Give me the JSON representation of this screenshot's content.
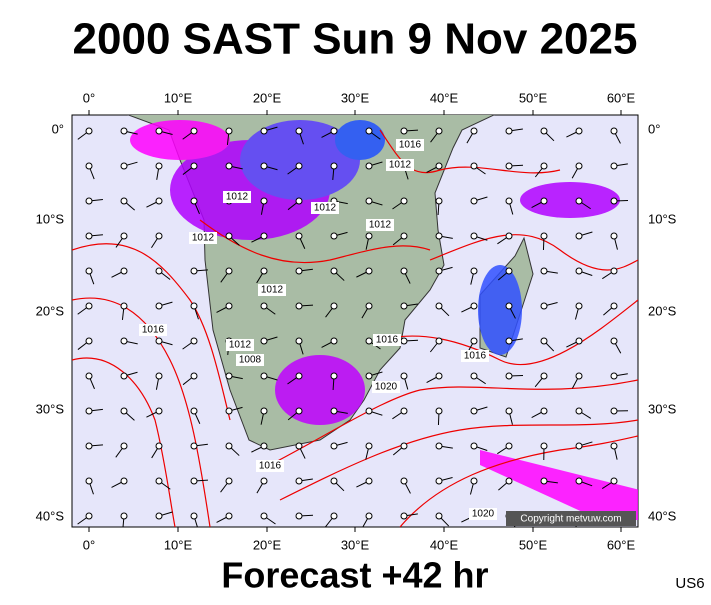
{
  "header": {
    "title": "2000 SAST Sun 9 Nov 2025"
  },
  "map": {
    "lon_labels": [
      "0°",
      "10°E",
      "20°E",
      "30°E",
      "40°E",
      "50°E",
      "60°E"
    ],
    "lat_labels": [
      "0°",
      "10°S",
      "20°S",
      "30°S",
      "40°S"
    ],
    "isobar_labels": [
      "1016",
      "1012",
      "1012",
      "1012",
      "1012",
      "1012",
      "1012",
      "1016",
      "1012",
      "1008",
      "1016",
      "1020",
      "1016",
      "1016",
      "1020"
    ],
    "copyright": "Copyright metvuw.com"
  },
  "footer": {
    "forecast": "Forecast +42 hr",
    "code": "US6"
  }
}
